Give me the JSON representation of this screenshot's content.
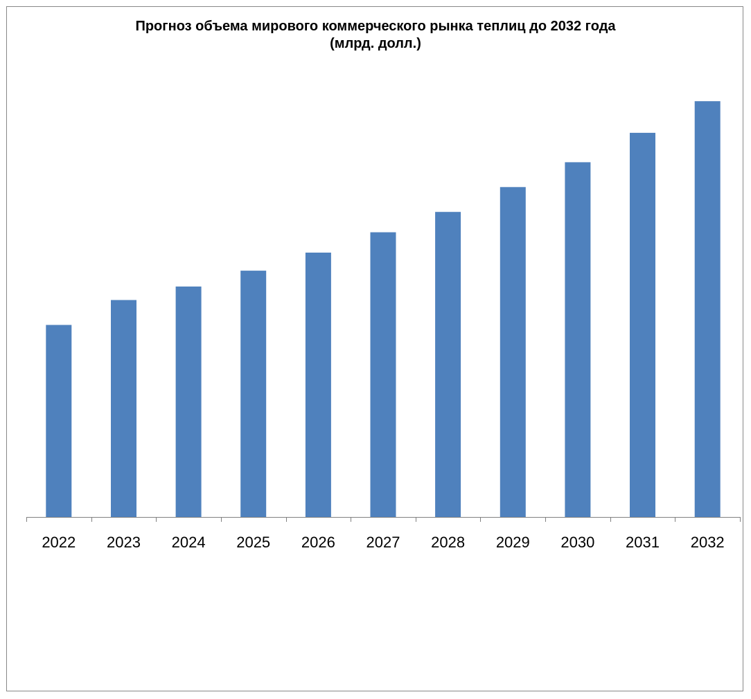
{
  "chart_data": {
    "type": "bar",
    "title_line1": "Прогноз объема мирового коммерческого рынка теплиц до 2032 года",
    "title_line2": "(млрд. долл.)",
    "categories": [
      "2022",
      "2023",
      "2024",
      "2025",
      "2026",
      "2027",
      "2028",
      "2029",
      "2030",
      "2031",
      "2032"
    ],
    "values": [
      8.5,
      9.6,
      10.2,
      10.9,
      11.7,
      12.6,
      13.5,
      14.6,
      15.7,
      17.0,
      18.4
    ],
    "xlabel": "",
    "ylabel": "",
    "ylim": [
      0,
      21.5
    ],
    "grid": false,
    "legend": "none",
    "bar_color": "#4F81BD",
    "axis_color": "#808080"
  }
}
